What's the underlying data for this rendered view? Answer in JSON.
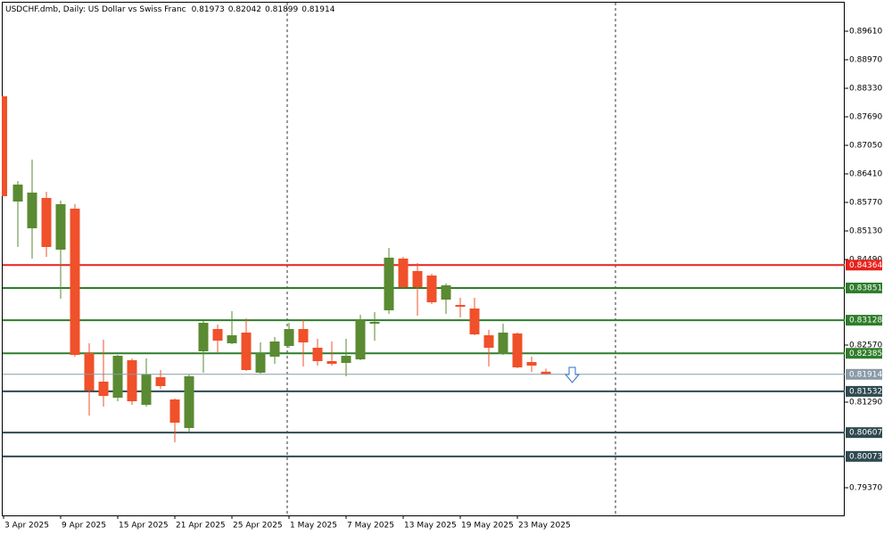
{
  "chart_data": {
    "type": "candlestick",
    "title": "USDCHF.dmb, Daily:  US Dollar vs Swiss Franc",
    "categories": [
      "3 Apr 2025",
      null,
      null,
      null,
      "9 Apr 2025",
      null,
      null,
      null,
      "15 Apr 2025",
      null,
      null,
      null,
      "21 Apr 2025",
      null,
      null,
      null,
      "25 Apr 2025",
      null,
      null,
      null,
      "1 May 2025",
      null,
      null,
      null,
      "7 May 2025",
      null,
      null,
      null,
      "13 May 2025",
      null,
      null,
      null,
      "19 May 2025",
      null,
      null,
      null,
      "23 May 2025",
      null,
      null
    ],
    "open": [
      0.8815,
      0.8579,
      0.8519,
      0.8587,
      0.8471,
      0.8563,
      0.8239,
      0.8175,
      0.8139,
      0.8223,
      0.8123,
      0.8185,
      0.8135,
      0.8071,
      0.8243,
      0.8293,
      0.8261,
      0.8285,
      0.8195,
      0.8231,
      0.8255,
      0.8293,
      0.8251,
      0.8221,
      0.8217,
      0.8225,
      0.8305,
      0.8335,
      0.8451,
      0.8423,
      0.8413,
      0.8359,
      0.8347,
      0.8339,
      0.8279,
      0.8237,
      0.8283,
      0.8219,
      0.81973
    ],
    "high": [
      0.8815,
      0.8625,
      0.8673,
      0.8601,
      0.8581,
      0.8573,
      0.8261,
      0.8269,
      0.8235,
      0.8227,
      0.8227,
      0.8201,
      0.8137,
      0.8191,
      0.8311,
      0.8303,
      0.8333,
      0.8317,
      0.8263,
      0.8275,
      0.8307,
      0.8315,
      0.8271,
      0.8265,
      0.8271,
      0.8325,
      0.8331,
      0.8475,
      0.8455,
      0.8441,
      0.8417,
      0.8395,
      0.8363,
      0.8363,
      0.8291,
      0.8305,
      0.8285,
      0.8231,
      0.82042
    ],
    "low": [
      0.8591,
      0.8477,
      0.8451,
      0.8455,
      0.8361,
      0.8231,
      0.8099,
      0.8119,
      0.8131,
      0.8123,
      0.8119,
      0.8159,
      0.8039,
      0.8061,
      0.8195,
      0.8241,
      0.8259,
      0.8199,
      0.8193,
      0.8215,
      0.8251,
      0.8209,
      0.8211,
      0.8211,
      0.8187,
      0.8223,
      0.8267,
      0.8327,
      0.8385,
      0.8323,
      0.8349,
      0.8327,
      0.8319,
      0.8279,
      0.8209,
      0.8235,
      0.8205,
      0.8197,
      0.81899
    ],
    "close": [
      0.8591,
      0.8617,
      0.8599,
      0.8477,
      0.8573,
      0.8235,
      0.8155,
      0.8143,
      0.8233,
      0.8131,
      0.8191,
      0.8165,
      0.8083,
      0.8187,
      0.8307,
      0.8267,
      0.8279,
      0.8201,
      0.8239,
      0.8265,
      0.8293,
      0.8263,
      0.8221,
      0.8215,
      0.8233,
      0.8315,
      0.8309,
      0.8453,
      0.8387,
      0.8387,
      0.8353,
      0.8391,
      0.8343,
      0.8281,
      0.8251,
      0.8285,
      0.8207,
      0.8211,
      0.81914
    ],
    "up_color": "#5a8a32",
    "down_color": "#f0502a",
    "ylim": [
      0.7875,
      0.9031
    ],
    "yticks": [
      {
        "value": 0.8961,
        "label": "0.89610"
      },
      {
        "value": 0.8897,
        "label": "0.88970"
      },
      {
        "value": 0.8833,
        "label": "0.88330"
      },
      {
        "value": 0.8769,
        "label": "0.87690"
      },
      {
        "value": 0.8705,
        "label": "0.87050"
      },
      {
        "value": 0.8641,
        "label": "0.86410"
      },
      {
        "value": 0.8577,
        "label": "0.85770"
      },
      {
        "value": 0.8513,
        "label": "0.85130"
      },
      {
        "value": 0.8449,
        "label": "0.84490"
      },
      {
        "value": 0.8257,
        "label": "0.82570"
      },
      {
        "value": 0.8129,
        "label": "0.81290"
      },
      {
        "value": 0.7937,
        "label": "0.79370"
      }
    ],
    "levels": [
      {
        "value": 0.84364,
        "color": "#e8211b"
      },
      {
        "value": 0.83851,
        "color": "#2e7d2a"
      },
      {
        "value": 0.83128,
        "color": "#2e7d2a"
      },
      {
        "value": 0.82385,
        "color": "#2e7d2a"
      },
      {
        "value": 0.81532,
        "color": "#2f4a4f"
      },
      {
        "value": 0.80607,
        "color": "#2f4a4f"
      },
      {
        "value": 0.80073,
        "color": "#2f4a4f"
      }
    ],
    "price_line_color": "#8a9aa6"
  }
}
